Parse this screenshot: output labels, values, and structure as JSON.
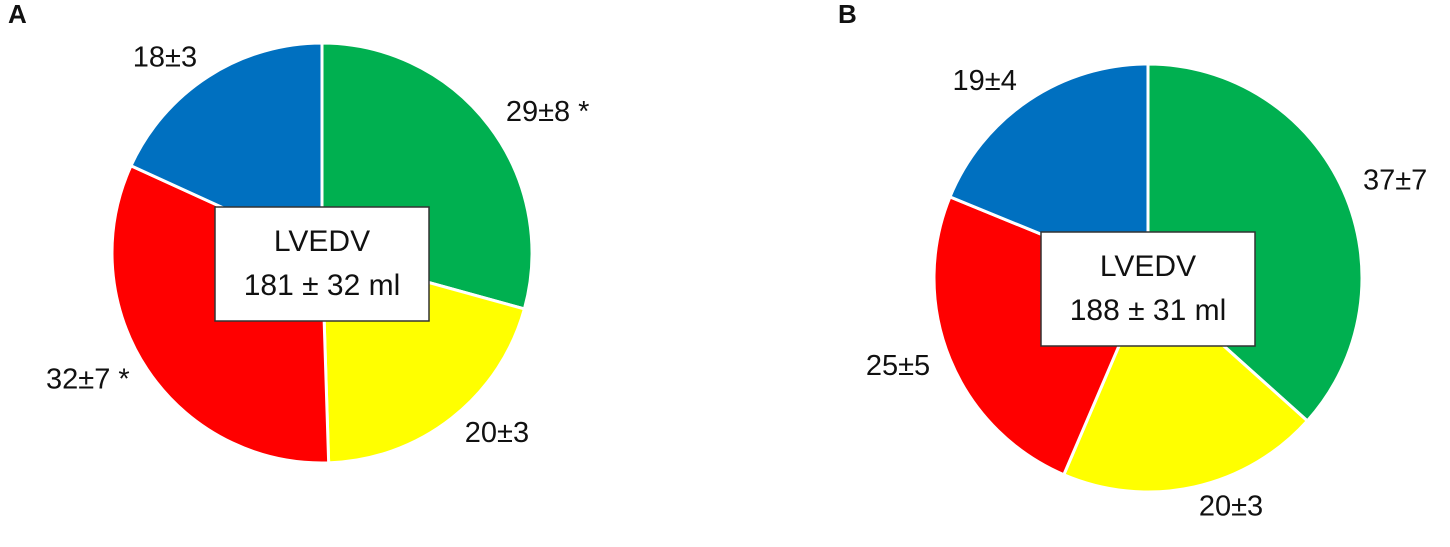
{
  "chart_data": [
    {
      "type": "pie",
      "title": "A",
      "categories": [
        "green",
        "yellow",
        "red",
        "blue"
      ],
      "values": [
        29,
        20,
        32,
        18
      ],
      "value_labels": [
        "29±8 *",
        "20±3",
        "32±7 *",
        "18±3"
      ],
      "colors": [
        "#00b050",
        "#ffff00",
        "#ff0000",
        "#0070c0"
      ],
      "annotations": [
        "LVEDV",
        "181 ± 32 ml"
      ]
    },
    {
      "type": "pie",
      "title": "B",
      "categories": [
        "green",
        "yellow",
        "red",
        "blue"
      ],
      "values": [
        37,
        20,
        25,
        19
      ],
      "value_labels": [
        "37±7",
        "20±3",
        "25±5",
        "19±4"
      ],
      "colors": [
        "#00b050",
        "#ffff00",
        "#ff0000",
        "#0070c0"
      ],
      "annotations": [
        "LVEDV",
        "188 ± 31 ml"
      ]
    }
  ]
}
